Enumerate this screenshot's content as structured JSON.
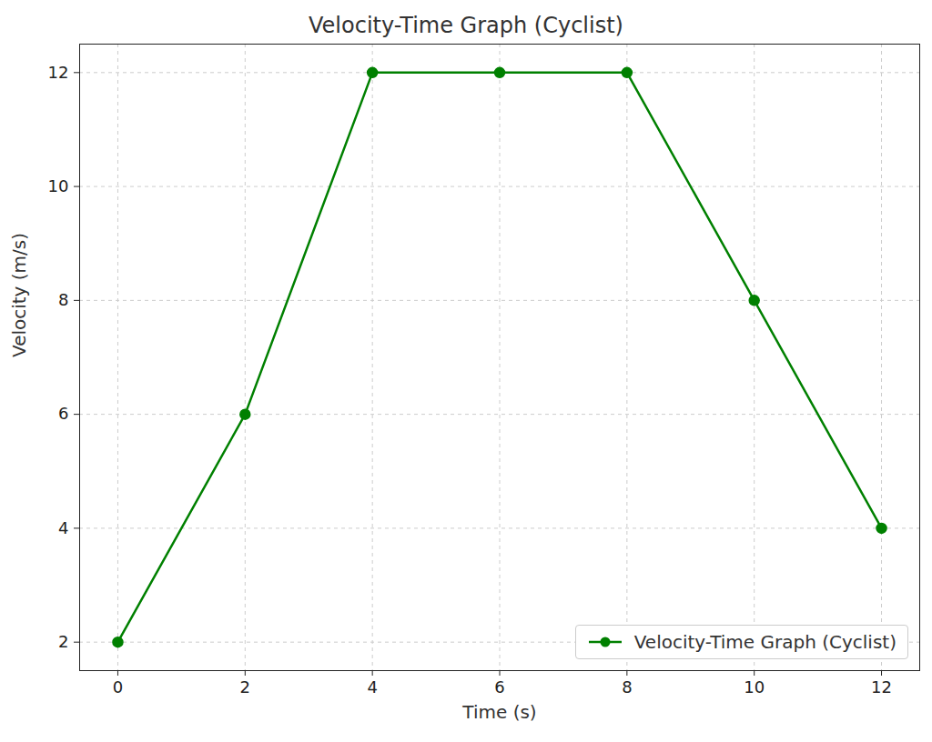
{
  "chart_data": {
    "type": "line",
    "title": "Velocity-Time Graph (Cyclist)",
    "x_label": "Time (s)",
    "y_label": "Velocity (m/s)",
    "x": [
      0,
      2,
      4,
      6,
      8,
      10,
      12
    ],
    "series": [
      {
        "name": "Velocity-Time Graph (Cyclist)",
        "color": "#008000",
        "marker": "circle",
        "line_style": "solid",
        "values": [
          2,
          6,
          12,
          12,
          12,
          8,
          4
        ]
      }
    ],
    "xlim": [
      -0.6,
      12.6
    ],
    "ylim": [
      1.5,
      12.5
    ],
    "xticks": [
      0,
      2,
      4,
      6,
      8,
      10,
      12
    ],
    "yticks": [
      2,
      4,
      6,
      8,
      10,
      12
    ],
    "grid": true,
    "legend": "lower right"
  }
}
